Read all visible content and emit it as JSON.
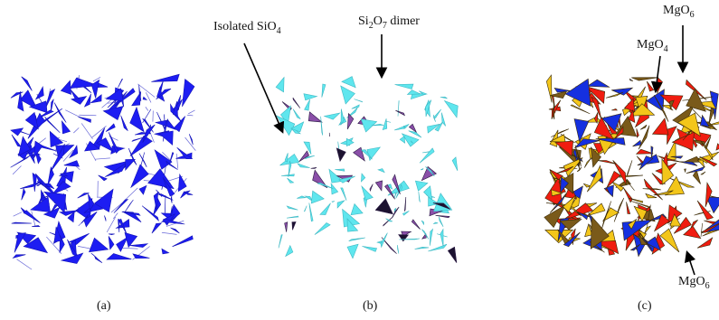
{
  "figure": {
    "panels": [
      {
        "id": "a",
        "label": "(a)"
      },
      {
        "id": "b",
        "label": "(b)"
      },
      {
        "id": "c",
        "label": "(c)"
      }
    ],
    "annotations": {
      "isolated_sio4": {
        "main": "Isolated SiO",
        "sub": "4"
      },
      "si2o7_dimer": {
        "part1": "Si",
        "sub1": "2",
        "part2": "O",
        "sub2": "7",
        "part3": " dimer"
      },
      "mgo4": {
        "main": "MgO",
        "sub": "4"
      },
      "mgo6_top": {
        "main": "MgO",
        "sub": "6"
      },
      "mgo6_bottom": {
        "main": "MgO",
        "sub": "6"
      }
    },
    "colors": {
      "a_blue": "#1d1df2",
      "b_cyan": "#5fe6ee",
      "b_purple": "#8a4fa8",
      "b_dark": "#1c1230",
      "c_red": "#f01c10",
      "c_yellow": "#f3c61a",
      "c_olive": "#7a5a1a",
      "c_blue": "#1530e0"
    }
  }
}
